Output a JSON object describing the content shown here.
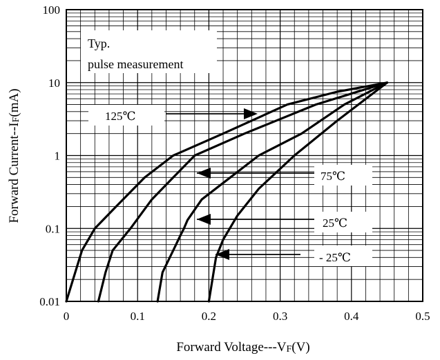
{
  "chart_data": {
    "type": "line",
    "xlabel": "Forward Voltage---V",
    "xlabel_sub": "F",
    "xlabel_unit": "(V)",
    "ylabel": "Forward Current--I",
    "ylabel_sub": "F",
    "ylabel_unit": "(mA)",
    "xlim": [
      0,
      0.5
    ],
    "ylim": [
      0.01,
      100
    ],
    "y_scale": "log",
    "grid": true,
    "x_ticks": [
      "0",
      "0.1",
      "0.2",
      "0.3",
      "0.4",
      "0.5"
    ],
    "y_ticks": [
      "0.01",
      "0.1",
      "1",
      "10",
      "100"
    ],
    "annotation": [
      "Typ.",
      "pulse measurement"
    ],
    "series": [
      {
        "name": "125℃",
        "x": [
          0.0,
          0.022,
          0.04,
          0.07,
          0.11,
          0.15,
          0.22,
          0.31,
          0.38,
          0.45
        ],
        "y": [
          0.01,
          0.05,
          0.1,
          0.2,
          0.5,
          1.0,
          2.0,
          5.0,
          7.5,
          10.0
        ]
      },
      {
        "name": "75℃",
        "x": [
          0.045,
          0.055,
          0.065,
          0.09,
          0.12,
          0.15,
          0.18,
          0.25,
          0.35,
          0.45
        ],
        "y": [
          0.01,
          0.025,
          0.05,
          0.1,
          0.25,
          0.5,
          1.0,
          2.0,
          5.0,
          10.0
        ]
      },
      {
        "name": "25℃",
        "x": [
          0.128,
          0.135,
          0.15,
          0.16,
          0.165,
          0.17,
          0.19,
          0.23,
          0.27,
          0.33,
          0.39,
          0.45
        ],
        "y": [
          0.01,
          0.025,
          0.05,
          0.08,
          0.1,
          0.13,
          0.25,
          0.5,
          1.0,
          2.0,
          5.0,
          10.0
        ]
      },
      {
        "name": "- 25℃",
        "x": [
          0.2,
          0.21,
          0.22,
          0.24,
          0.27,
          0.32,
          0.38,
          0.45
        ],
        "y": [
          0.01,
          0.04,
          0.07,
          0.15,
          0.35,
          1.0,
          3.0,
          10.0
        ]
      }
    ],
    "labels": [
      {
        "text": "125℃",
        "series": "125℃"
      },
      {
        "text": "75℃",
        "series": "75℃"
      },
      {
        "text": "25℃",
        "series": "25℃"
      },
      {
        "text": "- 25℃",
        "series": "- 25℃"
      }
    ]
  }
}
